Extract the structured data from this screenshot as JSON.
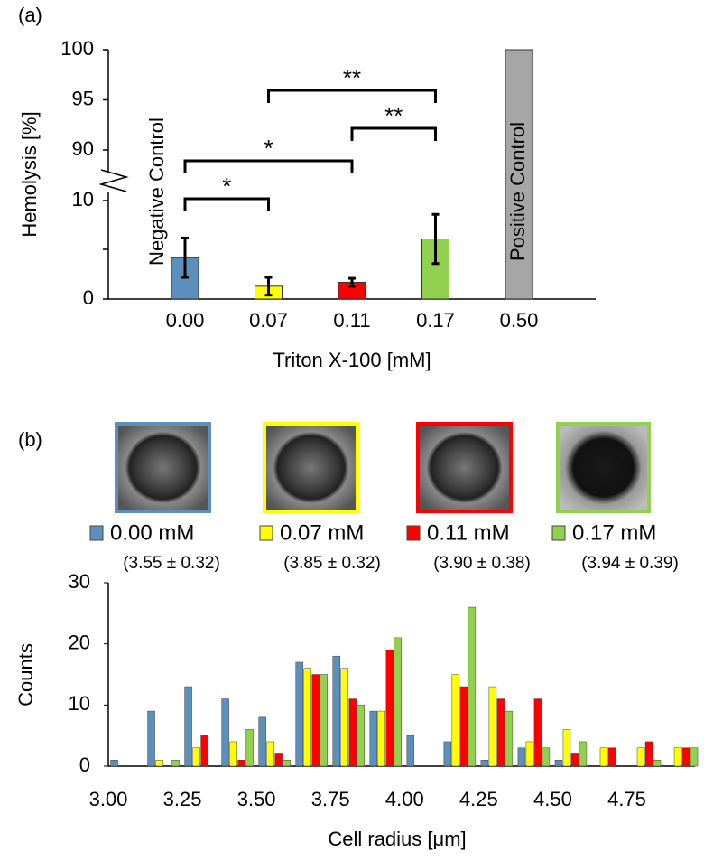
{
  "chart_data": [
    {
      "type": "bar",
      "panel": "(a)",
      "x_label": "Triton X-100 [mM]",
      "y_label": "Hemolysis [%]",
      "categories": [
        "0.00",
        "0.07",
        "0.11",
        "0.17",
        "0.50"
      ],
      "values": [
        4.2,
        1.3,
        1.7,
        6.1,
        100
      ],
      "errors": [
        2.0,
        0.9,
        0.4,
        2.5,
        null
      ],
      "colors": [
        "#5b8fbc",
        "#ffff00",
        "#ff0000",
        "#92d050",
        "#a6a6a6"
      ],
      "ylim": [
        0,
        100
      ],
      "ybreak": [
        10,
        90
      ],
      "yticks": [
        0,
        10,
        90,
        95,
        100
      ],
      "annotations": [
        {
          "text": "Negative Control",
          "category": 0
        },
        {
          "text": "Positive Control",
          "category": 4
        }
      ],
      "significance": [
        {
          "from": 0,
          "to": 1,
          "label": "*"
        },
        {
          "from": 0,
          "to": 2,
          "label": "*"
        },
        {
          "from": 2,
          "to": 3,
          "label": "**"
        },
        {
          "from": 1,
          "to": 3,
          "label": "**"
        }
      ]
    },
    {
      "type": "grouped_bar",
      "panel": "(b)",
      "x_label": "Cell radius [μm]",
      "y_label": "Counts",
      "x": [
        3.0625,
        3.1875,
        3.3125,
        3.4375,
        3.5625,
        3.6875,
        3.8125,
        3.9375,
        4.0625,
        4.1875,
        4.3125,
        4.4375,
        4.5625,
        4.6875,
        4.8125,
        4.9375
      ],
      "series": [
        {
          "name": "0.00 mM",
          "note": "(3.55 ± 0.32)",
          "color": "#5b8fbc",
          "values": [
            1,
            9,
            13,
            11,
            8,
            17,
            18,
            9,
            5,
            4,
            1,
            3,
            1,
            0,
            0,
            0
          ]
        },
        {
          "name": "0.07 mM",
          "note": "(3.85 ± 0.32)",
          "color": "#ffff00",
          "values": [
            0,
            1,
            3,
            4,
            4,
            16,
            16,
            9,
            0,
            15,
            13,
            4,
            6,
            3,
            3,
            3
          ]
        },
        {
          "name": "0.11 mM",
          "note": "(3.90 ± 0.38)",
          "color": "#ff0000",
          "values": [
            0,
            0,
            5,
            1,
            2,
            15,
            11,
            19,
            0,
            13,
            11,
            11,
            2,
            3,
            4,
            3
          ]
        },
        {
          "name": "0.17 mM",
          "note": "(3.94 ± 0.39)",
          "color": "#92d050",
          "values": [
            0,
            1,
            0,
            6,
            1,
            15,
            10,
            21,
            0,
            26,
            9,
            3,
            4,
            0,
            1,
            3
          ]
        }
      ],
      "xlim": [
        3.0,
        4.98
      ],
      "xticks": [
        {
          "value": 3.0,
          "label": "3.00"
        },
        3.25,
        {
          "value": 3.5,
          "label": "3.50"
        },
        3.75,
        {
          "value": 4.0,
          "label": "4.00"
        },
        4.25,
        {
          "value": 4.5,
          "label": "4.50"
        },
        4.75
      ],
      "ylim": [
        0,
        30
      ],
      "yticks": [
        0,
        10,
        20,
        30
      ]
    }
  ]
}
